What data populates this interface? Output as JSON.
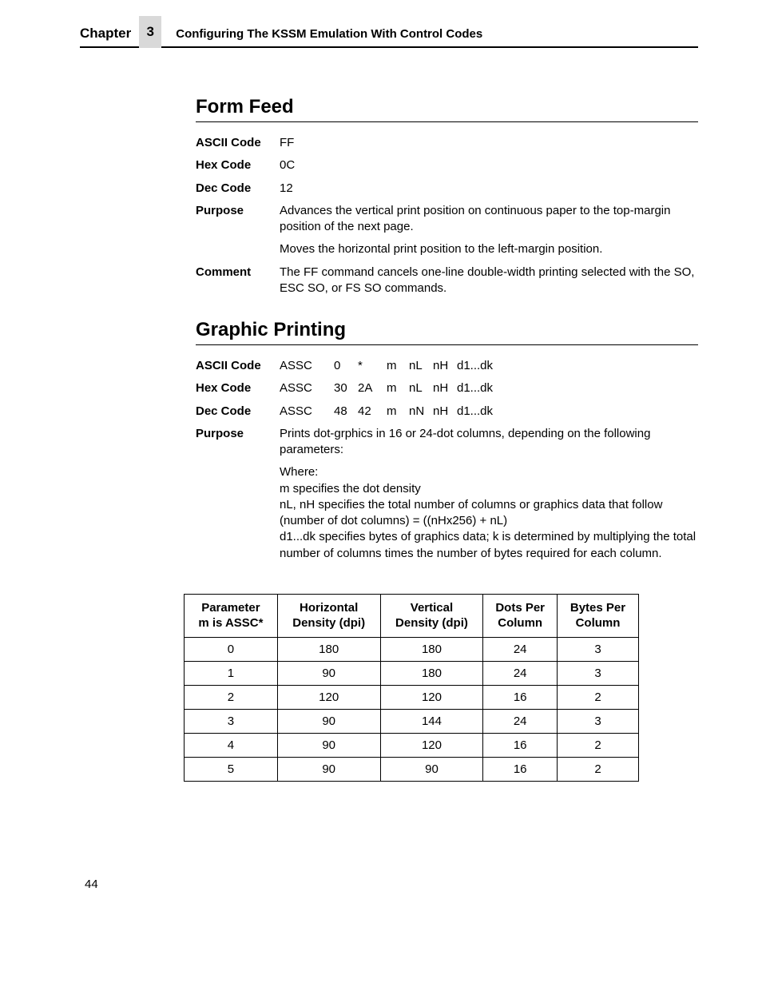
{
  "header": {
    "chapter_label": "Chapter",
    "chapter_num": "3",
    "chapter_title": "Configuring The KSSM Emulation With Control Codes"
  },
  "section1": {
    "title": "Form Feed",
    "rows": [
      {
        "label": "ASCII Code",
        "value": "FF"
      },
      {
        "label": "Hex Code",
        "value": "0C"
      },
      {
        "label": "Dec Code",
        "value": "12"
      },
      {
        "label": "Purpose",
        "value": "Advances the vertical print position on continuous paper to the top-margin position of the next page."
      },
      {
        "label": "",
        "value": "Moves the horizontal print position to the left-margin position."
      },
      {
        "label": "Comment",
        "value": "The FF command cancels one-line double-width printing selected with the SO, ESC SO, or FS SO commands."
      }
    ]
  },
  "section2": {
    "title": "Graphic Printing",
    "code_rows": [
      {
        "label": "ASCII Code",
        "assc": "ASSC",
        "a": "0",
        "b": "*",
        "m": "m",
        "nl": "nL",
        "nh": "nH",
        "rest": "d1...dk"
      },
      {
        "label": "Hex Code",
        "assc": "ASSC",
        "a": "30",
        "b": "2A",
        "m": "m",
        "nl": "nL",
        "nh": "nH",
        "rest": "d1...dk"
      },
      {
        "label": "Dec Code",
        "assc": "ASSC",
        "a": "48",
        "b": "42",
        "m": "m",
        "nl": "nN",
        "nh": "nH",
        "rest": "d1...dk"
      }
    ],
    "purpose": "Prints dot-grphics in 16 or 24-dot columns, depending on the following parameters:",
    "where_label": "Where:",
    "where_lines": [
      "m specifies the dot density",
      "nL, nH specifies the total number of columns or graphics data that follow (number of dot columns) = ((nHx256) + nL)",
      "d1...dk specifies bytes of graphics data; k is determined by multiplying the total number of columns times the number of bytes required for each column."
    ]
  },
  "table": {
    "columns": [
      "Parameter m is ASSC*",
      "Horizontal Density (dpi)",
      "Vertical Density (dpi)",
      "Dots Per Column",
      "Bytes Per Column"
    ],
    "rows": [
      [
        "0",
        "180",
        "180",
        "24",
        "3"
      ],
      [
        "1",
        "90",
        "180",
        "24",
        "3"
      ],
      [
        "2",
        "120",
        "120",
        "16",
        "2"
      ],
      [
        "3",
        "90",
        "144",
        "24",
        "3"
      ],
      [
        "4",
        "90",
        "120",
        "16",
        "2"
      ],
      [
        "5",
        "90",
        "90",
        "16",
        "2"
      ]
    ]
  },
  "page_num": "44"
}
